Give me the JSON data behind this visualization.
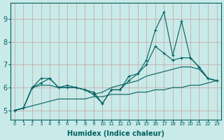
{
  "xlabel": "Humidex (Indice chaleur)",
  "bg_color": "#c8eae8",
  "grid_color": "#c8a0a0",
  "line_color": "#006060",
  "x": [
    0,
    1,
    2,
    3,
    4,
    5,
    6,
    7,
    8,
    9,
    10,
    11,
    12,
    13,
    14,
    15,
    16,
    17,
    18,
    19,
    20,
    21,
    22,
    23
  ],
  "y_volatile": [
    5.0,
    5.1,
    6.0,
    6.4,
    6.4,
    6.0,
    6.1,
    6.0,
    5.9,
    5.8,
    5.3,
    5.9,
    5.9,
    6.5,
    6.6,
    7.2,
    8.5,
    9.3,
    7.4,
    8.9,
    7.3,
    6.9,
    6.4,
    6.3
  ],
  "y_moderate": [
    5.0,
    5.1,
    6.0,
    6.2,
    6.4,
    6.0,
    6.0,
    6.0,
    5.9,
    5.7,
    5.3,
    5.9,
    5.9,
    6.3,
    6.6,
    7.0,
    7.8,
    7.5,
    7.2,
    7.3,
    7.3,
    6.9,
    6.4,
    6.3
  ],
  "y_smooth": [
    5.0,
    5.1,
    6.0,
    6.1,
    6.1,
    6.0,
    6.0,
    6.0,
    5.9,
    5.7,
    5.8,
    6.0,
    6.1,
    6.2,
    6.3,
    6.5,
    6.6,
    6.7,
    6.8,
    6.9,
    6.9,
    6.8,
    6.4,
    6.3
  ],
  "y_flat": [
    5.0,
    5.1,
    5.2,
    5.3,
    5.4,
    5.5,
    5.5,
    5.5,
    5.5,
    5.6,
    5.6,
    5.7,
    5.7,
    5.7,
    5.8,
    5.8,
    5.9,
    5.9,
    6.0,
    6.0,
    6.1,
    6.1,
    6.2,
    6.3
  ],
  "ylim": [
    4.6,
    9.7
  ],
  "yticks": [
    5,
    6,
    7,
    8,
    9
  ],
  "xlim": [
    -0.5,
    23.5
  ]
}
